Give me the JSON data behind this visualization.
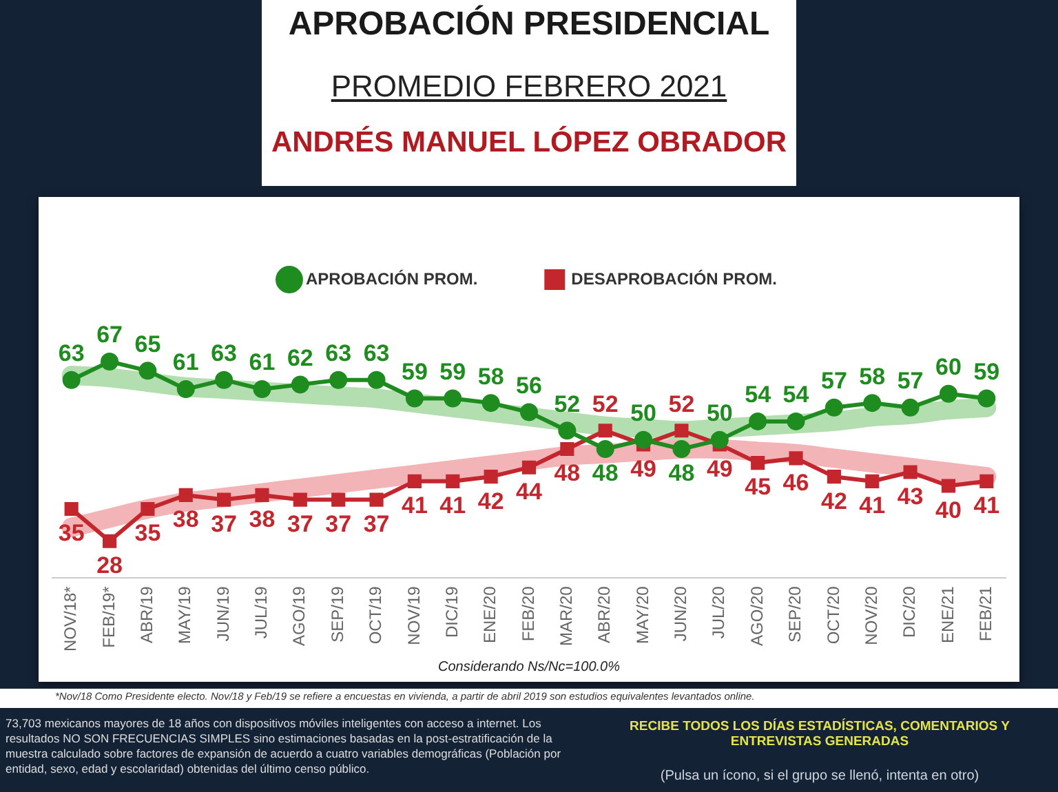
{
  "chart_data": {
    "type": "line",
    "title": "APROBACIÓN PRESIDENCIAL",
    "subtitle": "PROMEDIO FEBRERO 2021",
    "annotations": [
      "ANDRÉS MANUEL LÓPEZ OBRADOR",
      "Considerando Ns/Nc=100.0%",
      "*Nov/18 Como Presidente electo.  Nov/18 y Feb/19 se refiere a encuestas en vivienda, a partir de abril 2019 son estudios equivalentes levantados online.",
      "73,703 mexicanos mayores de 18 años con dispositivos móviles inteligentes con acceso a internet. Los resultados NO SON FRECUENCIAS SIMPLES sino estimaciones basadas en la post-estratificación de la muestra calculado sobre factores de expansión de acuerdo a cuatro variables demográficas (Población por entidad, sexo, edad y escolaridad) obtenidas del último censo público.",
      "RECIBE TODOS LOS DÍAS ESTADÍSTICAS, COMENTARIOS Y ENTREVISTAS GENERADAS",
      "(Pulsa un ícono, si el grupo se llenó, intenta en otro)"
    ],
    "categories": [
      "NOV/18*",
      "FEB/19*",
      "ABR/19",
      "MAY/19",
      "JUN/19",
      "JUL/19",
      "AGO/19",
      "SEP/19",
      "OCT/19",
      "NOV/19",
      "DIC/19",
      "ENE/20",
      "FEB/20",
      "MAR/20",
      "ABR/20",
      "MAY/20",
      "JUN/20",
      "JUL/20",
      "AGO/20",
      "SEP/20",
      "OCT/20",
      "NOV/20",
      "DIC/20",
      "ENE/21",
      "FEB/21"
    ],
    "series": [
      {
        "type": "line",
        "color": "#b3dfb0",
        "marker": "none",
        "values": [
          64,
          63.5,
          62.5,
          61.5,
          61,
          60.5,
          60,
          59.5,
          59,
          58,
          57,
          56,
          55,
          54,
          53,
          52.5,
          52,
          52.5,
          53,
          53.5,
          54,
          55,
          55.5,
          56.5,
          57
        ]
      },
      {
        "type": "line",
        "color": "#f2b4b6",
        "marker": "none",
        "values": [
          31,
          33,
          35,
          36.5,
          37.5,
          38.5,
          39.5,
          40.5,
          41.5,
          42.5,
          43.5,
          44.5,
          45.5,
          46.5,
          47,
          47.5,
          48,
          48,
          47.5,
          47,
          46,
          45,
          44,
          43,
          42
        ]
      },
      {
        "name": "APROBACIÓN PROM.",
        "type": "line",
        "color": "#1e8c1e",
        "marker": "circle",
        "values": [
          63,
          67,
          65,
          61,
          63,
          61,
          62,
          63,
          63,
          59,
          59,
          58,
          56,
          52,
          48,
          50,
          48,
          50,
          54,
          54,
          57,
          58,
          57,
          60,
          59
        ],
        "value_labels": [
          "63",
          "67",
          "65",
          "61",
          "63",
          "61",
          "62",
          "63",
          "63",
          "59",
          "59",
          "58",
          "56",
          "52",
          "48",
          "50",
          "48",
          "50",
          "54",
          "54",
          "57",
          "58",
          "57",
          "60",
          "59"
        ]
      },
      {
        "name": "DESAPROBACIÓN PROM.",
        "type": "line",
        "color": "#c4262e",
        "marker": "square",
        "values": [
          35,
          28,
          35,
          38,
          37,
          38,
          37,
          37,
          37,
          41,
          41,
          42,
          44,
          48,
          52,
          49,
          52,
          49,
          45,
          46,
          42,
          41,
          43,
          40,
          41
        ],
        "value_labels": [
          "35",
          "28",
          "35",
          "38",
          "37",
          "38",
          "37",
          "37",
          "37",
          "41",
          "41",
          "42",
          "44",
          "48",
          "52",
          "49",
          "52",
          "49",
          "45",
          "46",
          "42",
          "41",
          "43",
          "40",
          "41"
        ]
      }
    ],
    "legend": "top"
  }
}
